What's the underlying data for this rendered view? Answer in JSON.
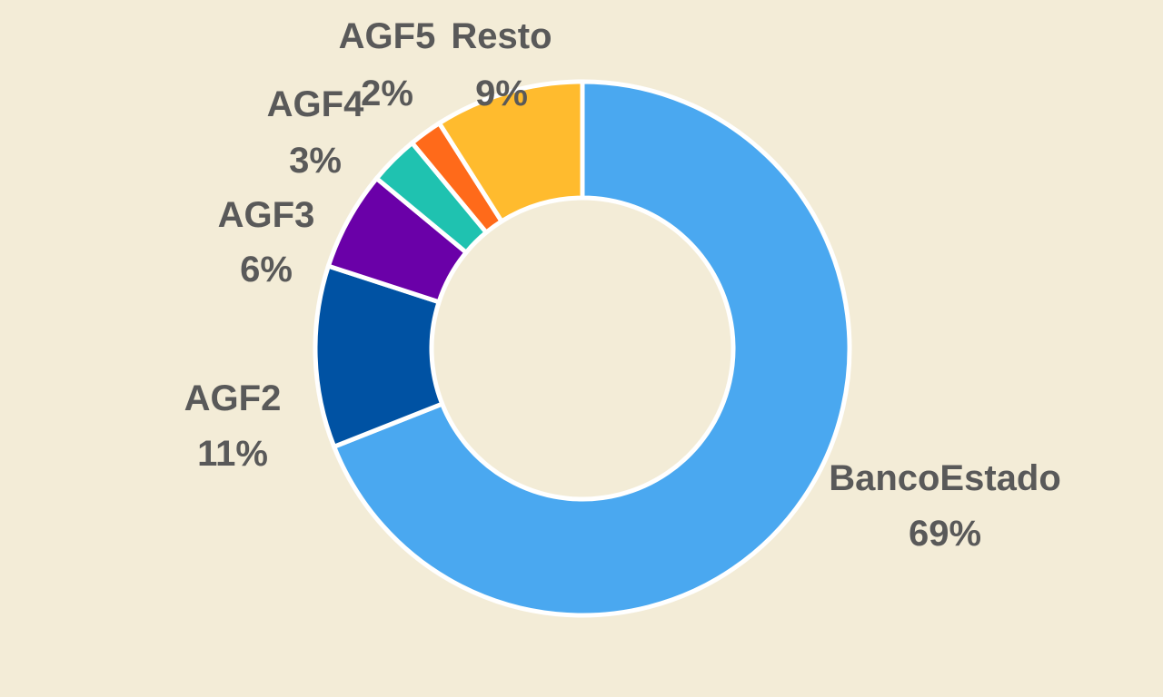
{
  "chart_data": {
    "type": "pie",
    "variant": "donut",
    "title": "",
    "legend": "none",
    "start_angle_deg": 0,
    "direction": "clockwise",
    "slices": [
      {
        "label": "BancoEstado",
        "value": 69,
        "value_label": "69%",
        "color": "#4AA8F0"
      },
      {
        "label": "AGF2",
        "value": 11,
        "value_label": "11%",
        "color": "#0052A3"
      },
      {
        "label": "AGF3",
        "value": 6,
        "value_label": "6%",
        "color": "#6A00A8"
      },
      {
        "label": "AGF4",
        "value": 3,
        "value_label": "3%",
        "color": "#1FC2B0"
      },
      {
        "label": "AGF5",
        "value": 2,
        "value_label": "2%",
        "color": "#FF6A1A"
      },
      {
        "label": "Resto",
        "value": 9,
        "value_label": "9%",
        "color": "#FFBB2E"
      }
    ]
  },
  "colors": {
    "background": "#F3ECD7",
    "label_text": "#595959",
    "slice_border": "#FFFFFF"
  }
}
